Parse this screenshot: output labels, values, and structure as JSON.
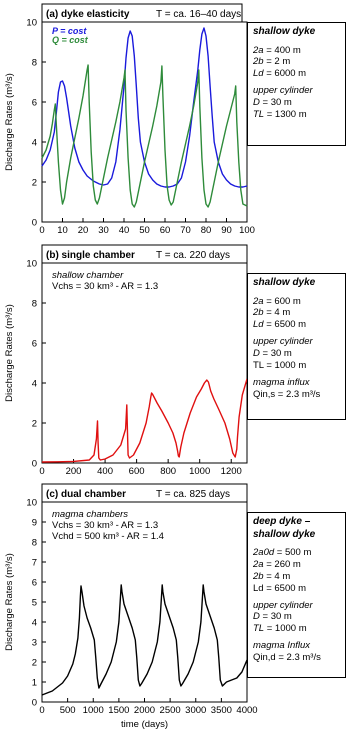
{
  "chart_data": [
    {
      "type": "line",
      "title": "(a) dyke elasticity",
      "subtitle": "T = ca. 16–40 days",
      "xlabel": "",
      "ylabel": "Discharge Rates (m³/s)",
      "xlim": [
        0,
        100
      ],
      "ylim": [
        0,
        10
      ],
      "x_ticks": [
        "0",
        "10",
        "20",
        "30",
        "40",
        "50",
        "60",
        "70",
        "80",
        "90",
        "100"
      ],
      "y_ticks": [
        "0",
        "2",
        "4",
        "6",
        "8",
        "10"
      ],
      "legend_position": "top-left",
      "series": [
        {
          "name": "P = cost",
          "color": "#1a1adc",
          "x": [
            0,
            2,
            4,
            6,
            7,
            8,
            9,
            10,
            11,
            12,
            14,
            16,
            18,
            20,
            22,
            25,
            28,
            30,
            32,
            34,
            36,
            38,
            40,
            41,
            42,
            43,
            44,
            45,
            46,
            47,
            48,
            50,
            52,
            54,
            56,
            58,
            60,
            62,
            64,
            66,
            68,
            70,
            72,
            74,
            76,
            77,
            78,
            79,
            80,
            81,
            82,
            83,
            84,
            86,
            88,
            90,
            92,
            94,
            96,
            98,
            100
          ],
          "y": [
            2.8,
            3.1,
            3.6,
            4.5,
            5.5,
            6.5,
            7.0,
            7.05,
            6.8,
            6.2,
            4.8,
            3.7,
            3.0,
            2.6,
            2.3,
            2.05,
            1.9,
            1.85,
            1.9,
            2.2,
            3.0,
            4.6,
            6.8,
            8.2,
            9.2,
            9.55,
            9.3,
            8.3,
            6.8,
            5.2,
            4.0,
            3.0,
            2.4,
            2.1,
            1.9,
            1.8,
            1.75,
            1.75,
            1.8,
            1.9,
            2.2,
            3.0,
            4.3,
            6.0,
            7.6,
            8.6,
            9.4,
            9.7,
            9.3,
            8.3,
            6.8,
            5.3,
            4.0,
            3.0,
            2.4,
            2.1,
            1.9,
            1.8,
            1.75,
            1.75,
            1.8
          ]
        },
        {
          "name": "Q = cost",
          "color": "#2e8b3a",
          "x": [
            0,
            2,
            4,
            5,
            6,
            6.5,
            7,
            8,
            9,
            10,
            11,
            12,
            14,
            16,
            18,
            20,
            22,
            22.5,
            23,
            24,
            25,
            26,
            27,
            28,
            30,
            32,
            34,
            36,
            38,
            40,
            40.5,
            41,
            42,
            43,
            44,
            45,
            46,
            48,
            50,
            52,
            54,
            56,
            58,
            58.5,
            59,
            60,
            61,
            62,
            63,
            64,
            66,
            68,
            70,
            72,
            74,
            76,
            76.5,
            77,
            78,
            79,
            80,
            81,
            82,
            84,
            86,
            88,
            90,
            92,
            94,
            94.5,
            95,
            96,
            97,
            98,
            100
          ],
          "y": [
            3.2,
            3.6,
            4.3,
            4.9,
            5.6,
            5.9,
            4.8,
            3.0,
            1.6,
            0.9,
            1.2,
            2.0,
            3.2,
            4.2,
            5.2,
            6.3,
            7.6,
            7.85,
            6.0,
            3.5,
            1.8,
            1.1,
            0.9,
            1.2,
            2.2,
            3.2,
            4.1,
            5.0,
            6.0,
            7.2,
            7.6,
            5.6,
            3.2,
            1.6,
            0.9,
            0.75,
            1.0,
            2.0,
            3.0,
            3.9,
            4.8,
            5.8,
            7.0,
            7.8,
            6.3,
            3.6,
            1.8,
            1.1,
            0.85,
            1.0,
            2.0,
            3.0,
            3.9,
            4.8,
            5.8,
            7.0,
            7.6,
            5.8,
            3.2,
            1.6,
            0.9,
            0.75,
            1.0,
            2.0,
            3.0,
            3.9,
            4.8,
            5.6,
            6.4,
            6.8,
            5.0,
            3.0,
            1.6,
            0.9,
            0.8
          ]
        }
      ],
      "annotation": {
        "heading": "shallow dyke",
        "lines": [
          {
            "var": "2a",
            "text": " = 400 m"
          },
          {
            "var": "2b",
            "text": " = 2 m"
          },
          {
            "var": "Ld",
            "text": " = 6000 m"
          }
        ],
        "heading2": "upper cylinder",
        "lines2": [
          {
            "var": "D",
            "text": " = 30 m"
          },
          {
            "var": "TL",
            "text": " = 1300 m"
          }
        ]
      }
    },
    {
      "type": "line",
      "title": "(b) single chamber",
      "subtitle": "T = ca. 220 days",
      "xlabel": "",
      "ylabel": "Discharge Rates (m³/s)",
      "xlim": [
        0,
        1300
      ],
      "ylim": [
        0,
        10
      ],
      "x_ticks": [
        "0",
        "200",
        "400",
        "600",
        "800",
        "1000",
        "1200"
      ],
      "y_ticks": [
        "0",
        "2",
        "4",
        "6",
        "8",
        "10"
      ],
      "inner_text": [
        "shallow chamber",
        "Vchs = 30 km³ - AR = 1.3"
      ],
      "series": [
        {
          "name": "",
          "color": "#e01010",
          "x": [
            0,
            100,
            200,
            300,
            330,
            345,
            352,
            356,
            360,
            370,
            400,
            450,
            500,
            530,
            538,
            542,
            546,
            555,
            580,
            620,
            660,
            680,
            690,
            695,
            700,
            710,
            730,
            760,
            800,
            830,
            850,
            860,
            865,
            870,
            880,
            900,
            940,
            980,
            1010,
            1030,
            1045,
            1055,
            1060,
            1070,
            1090,
            1120,
            1160,
            1190,
            1210,
            1225,
            1235,
            1240,
            1250,
            1270,
            1300
          ],
          "y": [
            0.05,
            0.06,
            0.08,
            0.15,
            0.4,
            1.2,
            2.1,
            1.0,
            0.25,
            0.15,
            0.2,
            0.4,
            0.9,
            1.7,
            2.9,
            1.5,
            0.4,
            0.25,
            0.4,
            1.0,
            2.0,
            2.8,
            3.3,
            3.5,
            3.45,
            3.3,
            3.0,
            2.6,
            2.0,
            1.5,
            1.0,
            0.6,
            0.35,
            0.3,
            0.8,
            1.5,
            2.5,
            3.3,
            3.7,
            4.0,
            4.15,
            4.05,
            3.9,
            3.6,
            3.2,
            2.7,
            2.0,
            1.2,
            0.5,
            0.3,
            0.7,
            1.3,
            2.3,
            3.4,
            4.2
          ]
        }
      ],
      "annotation": {
        "heading": "shallow dyke",
        "lines": [
          {
            "var": "2a",
            "text": " = 600 m"
          },
          {
            "var": "2b",
            "text": " = 4 m"
          },
          {
            "var": "Ld",
            "text": " = 6500 m"
          }
        ],
        "heading2": "upper cylinder",
        "lines2": [
          {
            "var": "D",
            "text": " = 30 m"
          },
          {
            "var": "",
            "text": "TL = 1000 m"
          }
        ],
        "heading3": "magma influx",
        "lines3": [
          {
            "var": "",
            "text": "Qin,s = 2.3 m³/s"
          }
        ]
      }
    },
    {
      "type": "line",
      "title": "(c) dual chamber",
      "subtitle": "T = ca. 825 days",
      "xlabel": "time (days)",
      "ylabel": "Discharge Rates (m³/s)",
      "xlim": [
        0,
        4000
      ],
      "ylim": [
        0,
        10
      ],
      "x_ticks": [
        "0",
        "500",
        "1000",
        "1500",
        "2000",
        "2500",
        "3000",
        "3500",
        "4000"
      ],
      "y_ticks": [
        "0",
        "1",
        "2",
        "3",
        "4",
        "5",
        "6",
        "7",
        "8",
        "9",
        "10"
      ],
      "inner_text": [
        "magma chambers",
        "Vchs = 30 km³ - AR = 1.3",
        "Vchd = 500 km³ - AR = 1.4"
      ],
      "series": [
        {
          "name": "",
          "color": "#000000",
          "x": [
            0,
            100,
            200,
            300,
            400,
            500,
            600,
            650,
            700,
            730,
            750,
            760,
            780,
            820,
            880,
            950,
            1020,
            1050,
            1080,
            1110,
            1150,
            1250,
            1350,
            1450,
            1500,
            1530,
            1545,
            1560,
            1600,
            1680,
            1760,
            1820,
            1850,
            1880,
            1910,
            1950,
            2050,
            2150,
            2250,
            2300,
            2330,
            2345,
            2360,
            2400,
            2480,
            2560,
            2620,
            2650,
            2680,
            2710,
            2750,
            2850,
            2950,
            3050,
            3100,
            3130,
            3145,
            3160,
            3200,
            3280,
            3360,
            3420,
            3450,
            3480,
            3520,
            3600,
            3700,
            3800,
            3900,
            4000
          ],
          "y": [
            0.35,
            0.45,
            0.55,
            0.75,
            0.95,
            1.3,
            1.9,
            2.4,
            3.2,
            4.2,
            5.3,
            5.8,
            5.5,
            4.8,
            4.2,
            3.7,
            3.1,
            2.2,
            1.2,
            0.7,
            0.9,
            1.4,
            2.0,
            3.0,
            4.0,
            5.2,
            5.85,
            5.5,
            4.9,
            4.3,
            3.7,
            3.1,
            2.2,
            1.1,
            0.8,
            0.95,
            1.4,
            2.0,
            3.0,
            4.0,
            5.2,
            5.85,
            5.5,
            4.9,
            4.3,
            3.7,
            3.1,
            2.2,
            1.1,
            0.8,
            0.95,
            1.4,
            2.0,
            3.0,
            4.0,
            5.2,
            5.85,
            5.5,
            4.9,
            4.3,
            3.7,
            3.1,
            2.2,
            1.1,
            0.8,
            1.0,
            1.1,
            1.2,
            1.5,
            2.1
          ]
        }
      ],
      "annotation": {
        "heading": "deep dyke –",
        "heading_b": "shallow dyke",
        "lines": [
          {
            "var": "2a0d",
            "text": " = 500 m"
          },
          {
            "var": "2a",
            "text": " = 260 m"
          },
          {
            "var": "2b",
            "text": " = 4 m"
          },
          {
            "var": "",
            "text": "Ld = 6500 m"
          }
        ],
        "heading2": "upper cylinder",
        "lines2": [
          {
            "var": "D",
            "text": " = 30 m"
          },
          {
            "var": "TL",
            "text": " = 1000 m"
          }
        ],
        "heading3": "magma Influx",
        "lines3": [
          {
            "var": "",
            "text": "Qin,d = 2.3 m³/s"
          }
        ]
      }
    }
  ]
}
